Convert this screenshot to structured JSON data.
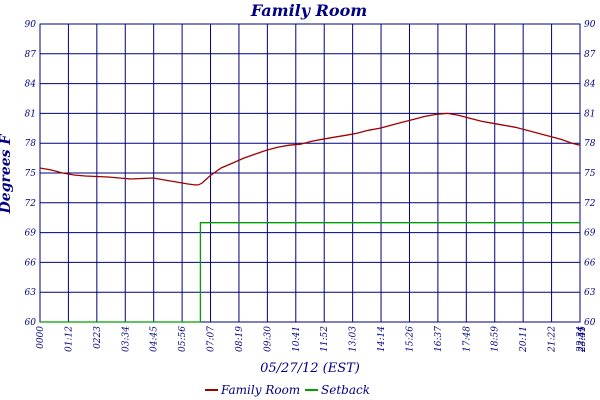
{
  "chart_data": {
    "type": "line",
    "title": "Family Room",
    "xlabel": "05/27/12 (EST)",
    "ylabel": "Degrees F",
    "ylim": [
      60,
      90
    ],
    "y_ticks": [
      "60",
      "63",
      "66",
      "69",
      "72",
      "75",
      "78",
      "81",
      "84",
      "87",
      "90"
    ],
    "x_tick_labels": [
      "0000",
      "01:12",
      "0223",
      "03:34",
      "04:45",
      "05:56",
      "07:07",
      "08:19",
      "09:30",
      "10:41",
      "11:52",
      "13:03",
      "14:14",
      "15:26",
      "16:37",
      "17:48",
      "18:59",
      "20:11",
      "21:22",
      "22:34",
      "23:45",
      "23:51"
    ],
    "x_unit": "minutes since 00:00",
    "xlim": [
      0,
      1431
    ],
    "grid": true,
    "legend_placement": "bottom-center",
    "series": [
      {
        "name": "Family Room",
        "color": "#a00000",
        "x": [
          0,
          30,
          60,
          90,
          120,
          180,
          240,
          300,
          330,
          360,
          390,
          410,
          420,
          430,
          450,
          480,
          510,
          540,
          570,
          600,
          630,
          660,
          690,
          720,
          750,
          780,
          810,
          840,
          870,
          900,
          930,
          960,
          990,
          1020,
          1050,
          1080,
          1110,
          1140,
          1170,
          1200,
          1230,
          1260,
          1290,
          1320,
          1350,
          1380,
          1410,
          1431
        ],
        "y": [
          75.5,
          75.3,
          75.0,
          74.8,
          74.7,
          74.6,
          74.4,
          74.5,
          74.3,
          74.1,
          73.9,
          73.8,
          73.8,
          74.0,
          74.7,
          75.5,
          76.0,
          76.5,
          76.9,
          77.3,
          77.6,
          77.8,
          77.9,
          78.2,
          78.4,
          78.6,
          78.8,
          79.0,
          79.3,
          79.5,
          79.8,
          80.1,
          80.4,
          80.7,
          80.9,
          81.0,
          80.8,
          80.5,
          80.2,
          80.0,
          79.8,
          79.6,
          79.3,
          79.0,
          78.7,
          78.4,
          78.0,
          77.8
        ]
      },
      {
        "name": "Setback",
        "color": "#00a000",
        "x": [
          0,
          425,
          425,
          1431
        ],
        "y": [
          60,
          60,
          70,
          70
        ]
      }
    ]
  }
}
